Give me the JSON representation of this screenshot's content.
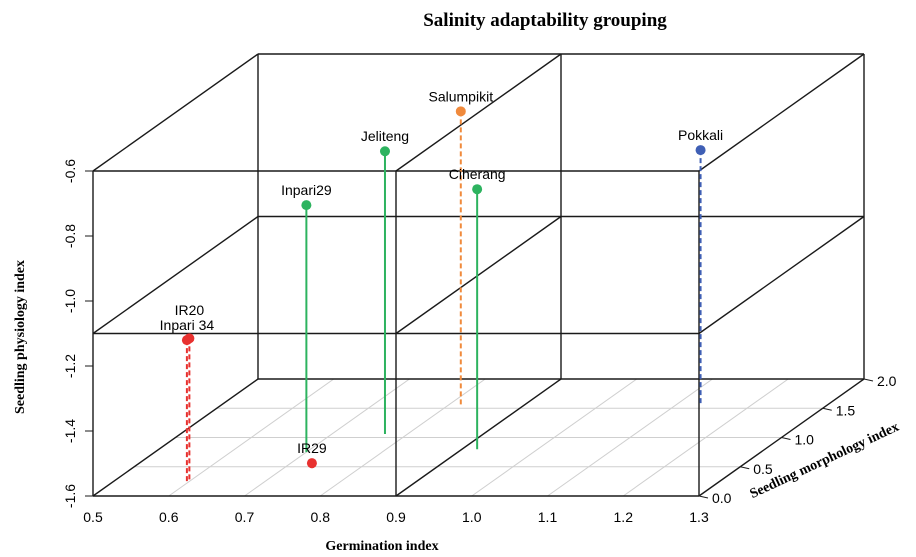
{
  "chart_data": {
    "type": "scatter",
    "subtype": "3d-scatter-with-drop-lines",
    "title": "Salinity adaptability grouping",
    "xlabel": "Germination index",
    "ylabel": "Seedling morphology index",
    "zlabel": "Seedling physiology index",
    "xlim": [
      0.5,
      1.3
    ],
    "ylim": [
      0.0,
      2.0
    ],
    "zlim": [
      -1.6,
      -0.6
    ],
    "x_ticks": [
      "0.5",
      "0.6",
      "0.7",
      "0.8",
      "0.9",
      "1.0",
      "1.1",
      "1.2",
      "1.3"
    ],
    "y_ticks": [
      "0.0",
      "0.5",
      "1.0",
      "1.5",
      "2.0"
    ],
    "z_ticks": [
      "-1.6",
      "-1.4",
      "-1.2",
      "-1.0",
      "-0.8",
      "-0.6"
    ],
    "grid": true,
    "points": [
      {
        "label": "Inpari 34",
        "x": 0.6,
        "y": 0.22,
        "z": -1.16,
        "color": "#e8312f",
        "line": "dashed"
      },
      {
        "label": "IR20",
        "x": 0.6,
        "y": 0.25,
        "z": -1.16,
        "color": "#e8312f",
        "line": "dashed"
      },
      {
        "label": "IR29",
        "x": 0.74,
        "y": 0.45,
        "z": -1.58,
        "color": "#e8312f",
        "line": "dashed"
      },
      {
        "label": "Inpari29",
        "x": 0.7,
        "y": 0.75,
        "z": -0.84,
        "color": "#2db35f",
        "line": "solid"
      },
      {
        "label": "Jeliteng",
        "x": 0.77,
        "y": 1.06,
        "z": -0.73,
        "color": "#2db35f",
        "line": "solid"
      },
      {
        "label": "Salumpikit",
        "x": 0.82,
        "y": 1.52,
        "z": -0.69,
        "color": "#f08a3c",
        "line": "dashed"
      },
      {
        "label": "Ciherang",
        "x": 0.92,
        "y": 0.8,
        "z": -0.8,
        "color": "#2db35f",
        "line": "solid"
      },
      {
        "label": "Pokkali",
        "x": 1.13,
        "y": 1.58,
        "z": -0.82,
        "color": "#3f5fb5",
        "line": "dashed"
      }
    ]
  }
}
